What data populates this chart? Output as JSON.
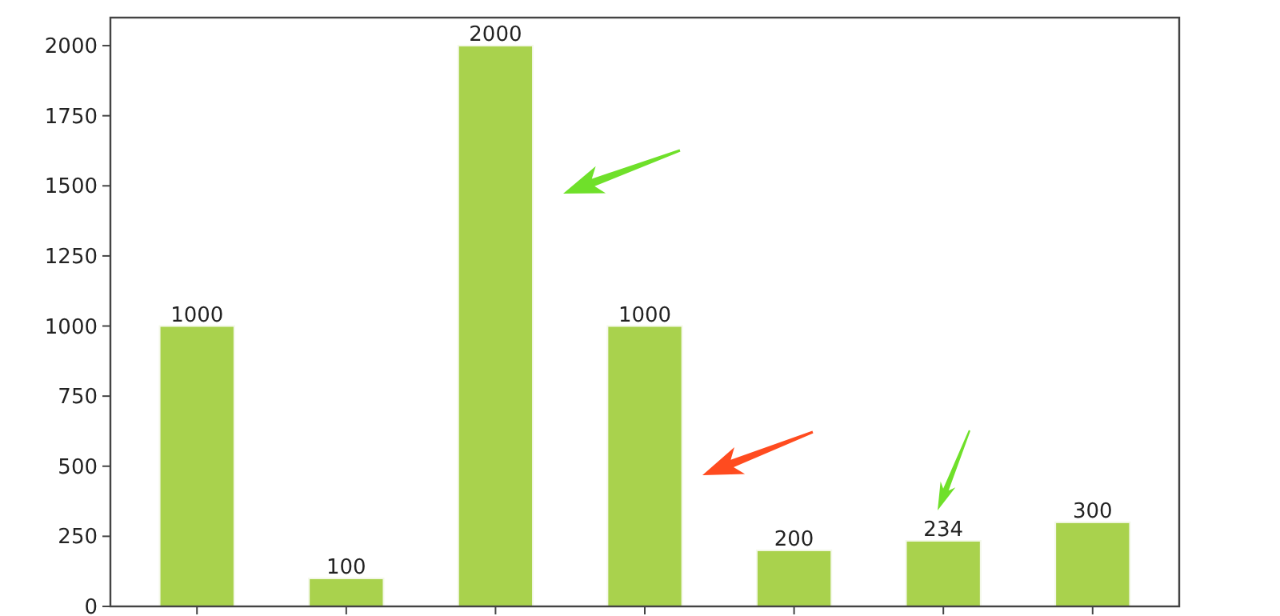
{
  "chart_data": {
    "type": "bar",
    "categories": [
      null,
      null,
      null,
      null,
      null,
      null,
      null
    ],
    "values": [
      1000,
      100,
      2000,
      1000,
      200,
      234,
      300
    ],
    "color": "#a9d24d",
    "ylim": [
      0,
      2100
    ],
    "yticks": [
      0,
      250,
      500,
      750,
      1000,
      1250,
      1500,
      1750,
      2000
    ],
    "data_labels": true
  }
}
